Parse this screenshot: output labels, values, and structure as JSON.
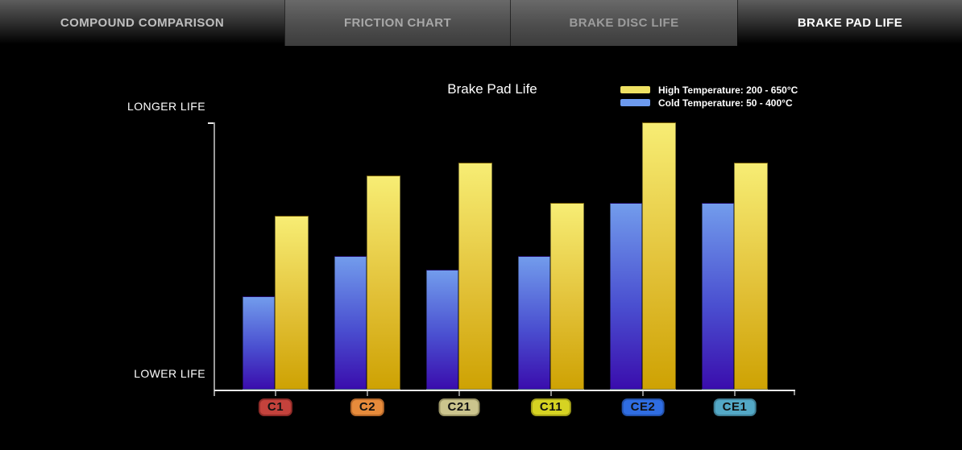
{
  "tabs": [
    {
      "label": "COMPOUND COMPARISON",
      "active": false
    },
    {
      "label": "FRICTION CHART",
      "active": false
    },
    {
      "label": "BRAKE DISC LIFE",
      "active": false
    },
    {
      "label": "BRAKE PAD LIFE",
      "active": true
    }
  ],
  "chart_data": {
    "type": "bar",
    "title": "Brake Pad Life",
    "categories": [
      "C1",
      "C2",
      "C21",
      "C11",
      "CE2",
      "CE1"
    ],
    "series": [
      {
        "name": "High Temperature: 200 - 650°C",
        "color": "#EFE163",
        "gradient": [
          "#F7ED74",
          "#E2C138",
          "#CEA203"
        ],
        "values": [
          65,
          80,
          85,
          70,
          100,
          85
        ]
      },
      {
        "name": "Cold Temperature: 50 - 400°C",
        "color": "#6D9AEE",
        "gradient": [
          "#729CEC",
          "#4A4FD0",
          "#3A0DAD"
        ],
        "values": [
          35,
          50,
          45,
          50,
          70,
          70
        ]
      }
    ],
    "axis_labels": {
      "top": "LONGER LIFE",
      "bottom": "LOWER LIFE"
    },
    "ylim": [
      0,
      100
    ],
    "grid": false,
    "legend_position": "top-right",
    "bar_order_note": "cold bar drawn left, high-temperature bar drawn right of each pair",
    "category_badges": [
      {
        "label": "C1",
        "bg": "#C4423C",
        "border": "#8F2B28"
      },
      {
        "label": "C2",
        "bg": "#E78B3B",
        "border": "#B5682A"
      },
      {
        "label": "C21",
        "bg": "#CBC48D",
        "border": "#9A9465"
      },
      {
        "label": "C11",
        "bg": "#D6D322",
        "border": "#A3A019"
      },
      {
        "label": "CE2",
        "bg": "#2F6DE2",
        "border": "#2352AC"
      },
      {
        "label": "CE1",
        "bg": "#53A8C6",
        "border": "#3F7F96"
      }
    ],
    "axis_color": "#ECECEC"
  }
}
